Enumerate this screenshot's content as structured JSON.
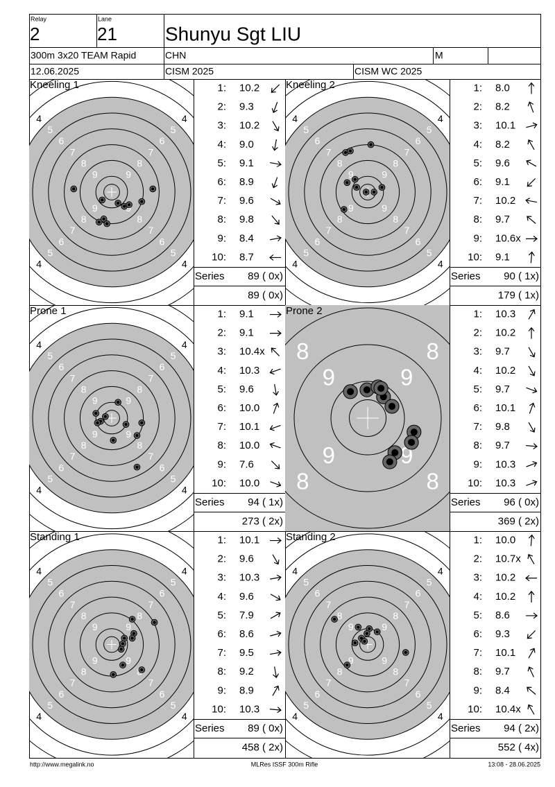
{
  "header": {
    "relay_label": "Relay",
    "relay": "2",
    "lane_label": "Lane",
    "lane": "21",
    "name": "Shunyu Sgt LIU",
    "event": "300m 3x20 TEAM Rapid",
    "nation": "CHN",
    "gender": "M",
    "date": "12.06.2025",
    "competition": "CISM 2025",
    "match": "CISM WC 2025"
  },
  "target": {
    "ring_labels": [
      "4",
      "5",
      "6",
      "7",
      "8",
      "9"
    ]
  },
  "panels": [
    {
      "title": "Kneeling 1",
      "numbers": [
        "1:",
        "2:",
        "3:",
        "4:",
        "5:",
        "6:",
        "7:",
        "8:",
        "9:",
        "10:"
      ],
      "scores": [
        "10.2",
        "9.3",
        "10.2",
        "9.0",
        "9.1",
        "8.9",
        "9.6",
        "9.8",
        "8.4",
        "8.7"
      ],
      "arrows": [
        225,
        200,
        150,
        190,
        100,
        200,
        120,
        140,
        80,
        270
      ],
      "hits": [
        [
          -2.4,
          -0.2
        ],
        [
          -0.6,
          0.5
        ],
        [
          0.4,
          0.7
        ],
        [
          0.8,
          0.9
        ],
        [
          1.1,
          0.8
        ],
        [
          1.9,
          0.6
        ],
        [
          2.6,
          -0.2
        ],
        [
          -0.8,
          1.9
        ],
        [
          -0.5,
          1.7
        ],
        [
          -0.3,
          2.0
        ]
      ],
      "series_label": "Series",
      "series": "89 ( 0x)",
      "total": "89 ( 0x)"
    },
    {
      "title": "Kneeling 2",
      "numbers": [
        "1:",
        "2:",
        "3:",
        "4:",
        "5:",
        "6:",
        "7:",
        "8:",
        "9:",
        "10:"
      ],
      "scores": [
        "8.0",
        "8.2",
        "10.1",
        "8.2",
        "9.6",
        "9.1",
        "10.2",
        "9.7",
        "10.6x",
        "9.1"
      ],
      "arrows": [
        0,
        340,
        75,
        330,
        300,
        225,
        280,
        310,
        90,
        5
      ],
      "hits": [
        [
          -1.4,
          -2.5
        ],
        [
          -1.1,
          -2.6
        ],
        [
          0.2,
          -3.0
        ],
        [
          -0.8,
          -0.8
        ],
        [
          -1.3,
          -0.6
        ],
        [
          -0.7,
          -0.3
        ],
        [
          0.4,
          0.0
        ],
        [
          0.9,
          -0.3
        ],
        [
          -1.5,
          1.1
        ],
        [
          -0.1,
          0.0
        ]
      ],
      "series_label": "Series",
      "series": "90 ( 1x)",
      "total": "179 ( 1x)"
    },
    {
      "title": "Prone 1",
      "numbers": [
        "1:",
        "2:",
        "3:",
        "4:",
        "5:",
        "6:",
        "7:",
        "8:",
        "9:",
        "10:"
      ],
      "scores": [
        "9.1",
        "9.1",
        "10.4x",
        "10.3",
        "9.6",
        "10.0",
        "10.1",
        "10.0",
        "7.6",
        "10.0"
      ],
      "arrows": [
        90,
        90,
        315,
        250,
        170,
        20,
        250,
        290,
        135,
        110
      ],
      "hits": [
        [
          0.4,
          -1.0
        ],
        [
          -1.0,
          -0.3
        ],
        [
          -0.7,
          0.2
        ],
        [
          -0.9,
          0.3
        ],
        [
          0.9,
          0.4
        ],
        [
          1.9,
          0.3
        ],
        [
          1.6,
          1.1
        ],
        [
          0.1,
          1.4
        ],
        [
          1.6,
          3.1
        ],
        [
          -0.4,
          -0.1
        ]
      ],
      "series_label": "Series",
      "series": "94 ( 1x)",
      "total": "273 ( 2x)"
    },
    {
      "title": "Prone 2",
      "numbers": [
        "1:",
        "2:",
        "3:",
        "4:",
        "5:",
        "6:",
        "7:",
        "8:",
        "9:",
        "10:"
      ],
      "scores": [
        "10.3",
        "10.2",
        "9.7",
        "10.2",
        "9.7",
        "10.1",
        "9.8",
        "9.7",
        "10.3",
        "10.3"
      ],
      "arrows": [
        30,
        0,
        150,
        150,
        110,
        20,
        150,
        95,
        70,
        70
      ],
      "hits": [
        [
          -0.47,
          -0.72
        ],
        [
          -0.02,
          -0.77
        ],
        [
          0.28,
          -0.85
        ],
        [
          0.43,
          -0.58
        ],
        [
          0.66,
          -0.32
        ],
        [
          1.26,
          0.38
        ],
        [
          1.19,
          0.66
        ],
        [
          0.74,
          0.94
        ],
        [
          0.6,
          1.19
        ],
        [
          0.36,
          -0.81
        ]
      ],
      "series_label": "Series",
      "series": "96 ( 0x)",
      "total": "369 ( 2x)"
    },
    {
      "title": "Standing 1",
      "numbers": [
        "1:",
        "2:",
        "3:",
        "4:",
        "5:",
        "6:",
        "7:",
        "8:",
        "9:",
        "10:"
      ],
      "scores": [
        "10.1",
        "9.6",
        "10.3",
        "9.6",
        "7.9",
        "8.6",
        "9.5",
        "9.2",
        "8.9",
        "10.3"
      ],
      "arrows": [
        90,
        150,
        80,
        120,
        60,
        75,
        80,
        170,
        30,
        95
      ],
      "hits": [
        [
          1.3,
          -1.6
        ],
        [
          2.7,
          -1.4
        ],
        [
          1.4,
          -0.7
        ],
        [
          1.3,
          -0.4
        ],
        [
          0.8,
          -0.4
        ],
        [
          0.7,
          -0.05
        ],
        [
          0.6,
          0.3
        ],
        [
          0.7,
          1.3
        ],
        [
          1.9,
          1.6
        ],
        [
          0.1,
          1.9
        ]
      ],
      "series_label": "Series",
      "series": "89 ( 0x)",
      "total": "458 ( 2x)"
    },
    {
      "title": "Standing 2",
      "numbers": [
        "1:",
        "2:",
        "3:",
        "4:",
        "5:",
        "6:",
        "7:",
        "8:",
        "9:",
        "10:"
      ],
      "scores": [
        "10.0",
        "10.7x",
        "10.2",
        "10.2",
        "8.6",
        "9.3",
        "10.1",
        "9.7",
        "8.4",
        "10.4x"
      ],
      "arrows": [
        5,
        330,
        270,
        0,
        90,
        225,
        30,
        335,
        310,
        330
      ],
      "hits": [
        [
          -2.1,
          -1.6
        ],
        [
          -0.6,
          -1.1
        ],
        [
          0.1,
          -1.0
        ],
        [
          0.6,
          -0.8
        ],
        [
          -0.05,
          -0.7
        ],
        [
          -0.4,
          -0.4
        ],
        [
          -0.8,
          -0.1
        ],
        [
          -0.2,
          -0.2
        ],
        [
          2.4,
          0.5
        ],
        [
          -1.3,
          1.3
        ]
      ],
      "series_label": "Series",
      "series": "94 ( 2x)",
      "total": "552 ( 4x)"
    }
  ],
  "footer": {
    "left": "http://www.megalink.no",
    "center": "MLRes ISSF 300m Rifle",
    "right": "13:08 - 28.06.2025"
  }
}
